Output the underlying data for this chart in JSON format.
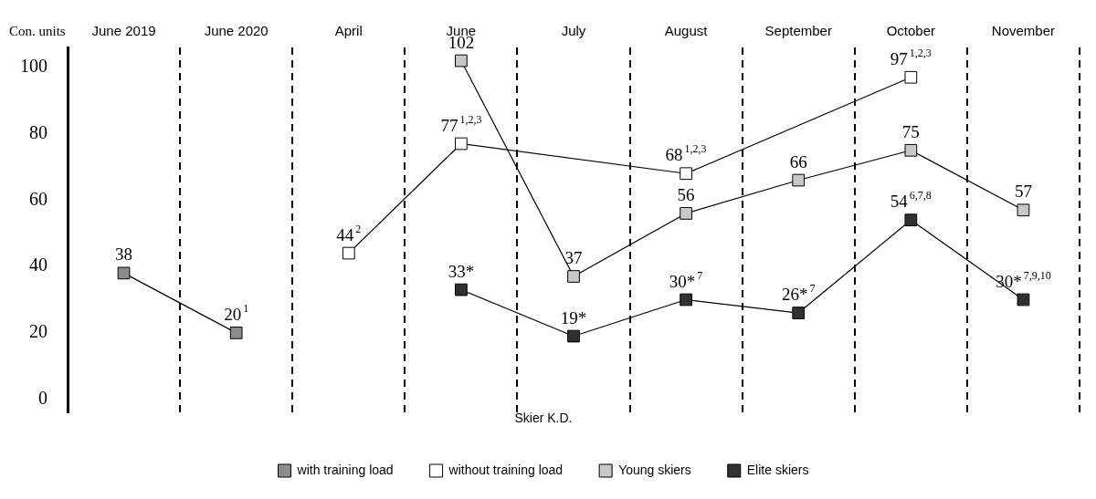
{
  "chart_data": {
    "type": "line",
    "ylabel": "Con. units",
    "legend_title": "Skier K.D.",
    "categories": [
      "June 2019",
      "June 2020",
      "April",
      "June",
      "July",
      "August",
      "September",
      "October",
      "November"
    ],
    "ylim": [
      -4,
      106
    ],
    "yticks": [
      0,
      20,
      40,
      60,
      80,
      100
    ],
    "grid": "x",
    "legend": "bottom",
    "marker": "square",
    "line_style": "solid",
    "series": [
      {
        "name": "with training load",
        "color": "#8c8c8c",
        "values": [
          38,
          20,
          null,
          null,
          null,
          null,
          null,
          null,
          null
        ],
        "value_labels": [
          "38",
          "20$^{1}$",
          null,
          null,
          null,
          null,
          null,
          null,
          null
        ]
      },
      {
        "name": "without training load",
        "color": "#ffffff",
        "values": [
          null,
          null,
          44,
          77,
          null,
          68,
          null,
          97,
          null
        ],
        "value_labels": [
          null,
          null,
          "44$^{2}$",
          "77$^{1,2,3}$",
          null,
          "68$^{1,2,3}$",
          null,
          "97$^{1,2,3}$",
          null
        ]
      },
      {
        "name": "Young skiers",
        "color": "#c8c8c8",
        "values": [
          null,
          null,
          null,
          102,
          37,
          56,
          66,
          75,
          57
        ],
        "value_labels": [
          null,
          null,
          null,
          "102",
          "37",
          "56",
          "66",
          "75",
          "57"
        ]
      },
      {
        "name": "Elite skiers",
        "color": "#303030",
        "values": [
          null,
          null,
          null,
          33,
          19,
          30,
          26,
          54,
          30
        ],
        "value_labels": [
          null,
          null,
          null,
          "33*",
          "19*",
          "30*$^{7}$",
          "26*$^{7}$",
          "54$^{6,7,8}$",
          "30*$^{7,9,10}$"
        ]
      }
    ]
  }
}
